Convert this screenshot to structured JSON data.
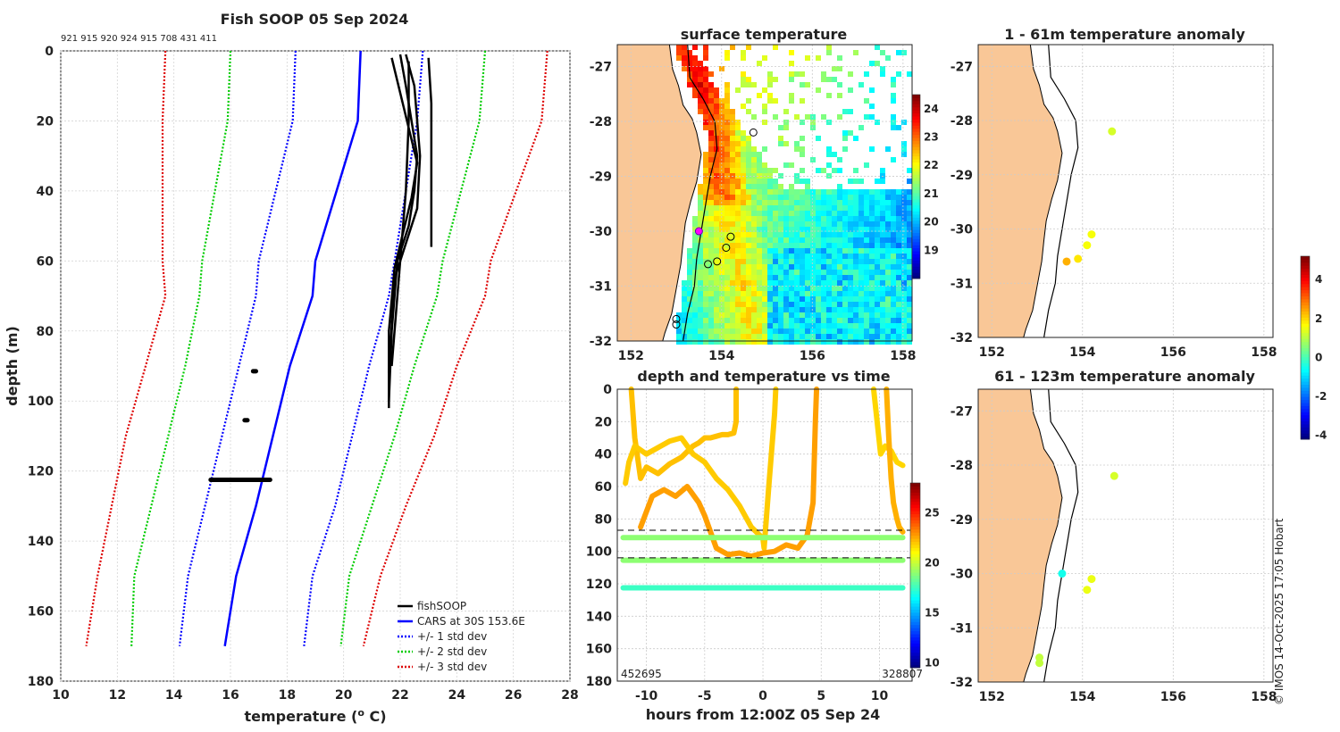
{
  "figure": {
    "copyright": "© IMOS 14-Oct-2025 17:05 Hobart"
  },
  "profile": {
    "title": "Fish SOOP 05 Sep 2024",
    "ids_line": "921 915 920 924 915 708 431 411",
    "xlabel": "temperature (",
    "xlabel_sup": "o",
    "xlabel_end": " C)",
    "ylabel": "depth (m)",
    "xticks": [
      "10",
      "12",
      "14",
      "16",
      "18",
      "20",
      "22",
      "24",
      "26",
      "28"
    ],
    "yticks": [
      "0",
      "20",
      "40",
      "60",
      "80",
      "100",
      "120",
      "140",
      "160",
      "180"
    ],
    "legend": [
      "fishSOOP",
      "CARS at 30S 153.6E",
      "+/- 1 std dev",
      "+/- 2 std dev",
      "+/- 3 std dev"
    ]
  },
  "chart_data": [
    {
      "type": "line",
      "name": "temperature profiles",
      "title": "Fish SOOP 05 Sep 2024",
      "xlabel": "temperature (o C)",
      "ylabel": "depth (m)",
      "xlim": [
        10,
        28
      ],
      "ylim": [
        180,
        0
      ],
      "depth": [
        0,
        20,
        60,
        70,
        90,
        110,
        130,
        150,
        170
      ],
      "series": [
        {
          "name": "CARS at 30S 153.6E",
          "color": "#0000ff",
          "style": "solid",
          "values": [
            20.6,
            20.5,
            19.0,
            18.9,
            18.1,
            17.5,
            16.9,
            16.2,
            15.8
          ]
        },
        {
          "name": "+1 std dev",
          "color": "#0000ff",
          "style": "dotted",
          "values": [
            22.8,
            22.6,
            21.8,
            21.6,
            20.9,
            20.3,
            19.7,
            18.9,
            18.6
          ]
        },
        {
          "name": "-1 std dev",
          "color": "#0000ff",
          "style": "dotted",
          "values": [
            18.3,
            18.2,
            17.0,
            16.9,
            16.3,
            15.7,
            15.1,
            14.5,
            14.2
          ]
        },
        {
          "name": "+2 std dev",
          "color": "#00cc00",
          "style": "dotted",
          "values": [
            25.0,
            24.8,
            23.5,
            23.3,
            22.5,
            21.8,
            21.0,
            20.2,
            19.9
          ]
        },
        {
          "name": "-2 std dev",
          "color": "#00cc00",
          "style": "dotted",
          "values": [
            16.0,
            15.9,
            15.0,
            14.9,
            14.4,
            13.8,
            13.2,
            12.6,
            12.5
          ]
        },
        {
          "name": "+3 std dev",
          "color": "#dd0000",
          "style": "dotted",
          "values": [
            27.2,
            27.0,
            25.2,
            25.0,
            24.0,
            23.2,
            22.2,
            21.3,
            20.7
          ]
        },
        {
          "name": "-3 std dev",
          "color": "#dd0000",
          "style": "dotted",
          "values": [
            13.7,
            13.6,
            13.6,
            13.7,
            13.0,
            12.3,
            11.8,
            11.3,
            10.9
          ]
        }
      ],
      "fishSOOP": [
        {
          "temp": [
            22.0,
            22.2,
            22.4,
            22.6,
            22.5,
            22.3,
            21.9,
            21.7,
            21.6
          ],
          "depth": [
            1,
            10,
            20,
            30,
            40,
            50,
            60,
            80,
            100
          ]
        },
        {
          "temp": [
            21.7,
            22.0,
            22.3,
            22.6,
            22.4,
            22.1,
            21.8,
            21.6,
            21.6
          ],
          "depth": [
            2,
            12,
            22,
            32,
            42,
            52,
            62,
            80,
            102
          ]
        },
        {
          "temp": [
            22.2,
            22.5,
            22.6,
            22.7,
            22.6,
            22.2,
            21.8,
            21.6
          ],
          "depth": [
            1,
            10,
            20,
            30,
            45,
            55,
            65,
            92
          ]
        },
        {
          "temp": [
            23.0,
            23.1,
            23.1,
            23.1,
            23.1
          ],
          "depth": [
            2,
            15,
            30,
            45,
            56
          ]
        },
        {
          "temp": [
            22.3,
            22.3,
            22.2,
            22.0,
            21.7
          ],
          "depth": [
            3,
            20,
            40,
            60,
            90
          ]
        }
      ],
      "fishSOOP_clusters": [
        {
          "temp_min": 15.3,
          "temp_max": 17.4,
          "depth": 122.5
        },
        {
          "temp_min": 16.8,
          "temp_max": 16.9,
          "depth": 91.5
        },
        {
          "temp_min": 16.5,
          "temp_max": 16.6,
          "depth": 105.5
        }
      ]
    },
    {
      "type": "heatmap",
      "name": "surface temperature map",
      "title": "surface temperature",
      "xticks": [
        "152",
        "154",
        "156",
        "158"
      ],
      "yticks": [
        "-27",
        "-28",
        "-29",
        "-30",
        "-31",
        "-32"
      ],
      "xlim": [
        151.7,
        158.2
      ],
      "ylim": [
        -32,
        -26.6
      ],
      "colorbar": {
        "ticks": [
          "24",
          "23",
          "22",
          "21",
          "20",
          "19"
        ],
        "range": [
          18,
          24.5
        ]
      },
      "stations": [
        {
          "lon": 154.7,
          "lat": -28.2
        },
        {
          "lon": 154.2,
          "lat": -30.1
        },
        {
          "lon": 154.1,
          "lat": -30.3
        },
        {
          "lon": 153.9,
          "lat": -30.55
        },
        {
          "lon": 153.7,
          "lat": -30.6
        },
        {
          "lon": 153.5,
          "lat": -30.0,
          "highlight": true
        },
        {
          "lon": 153.0,
          "lat": -31.6
        },
        {
          "lon": 153.0,
          "lat": -31.7
        }
      ]
    },
    {
      "type": "line",
      "name": "depth and temperature vs time",
      "title": "depth and temperature vs time",
      "xlabel": "hours from 12:00Z 05 Sep 24",
      "xticks": [
        "-10",
        "-5",
        "0",
        "5",
        "10"
      ],
      "yticks": [
        "0",
        "20",
        "40",
        "60",
        "80",
        "100",
        "120",
        "140",
        "160",
        "180"
      ],
      "xlim": [
        -12.5,
        12.8
      ],
      "ylim": [
        180,
        0
      ],
      "colorbar": {
        "ticks": [
          "25",
          "20",
          "15",
          "10"
        ],
        "range": [
          9.5,
          28
        ]
      },
      "corner_left": "452695",
      "corner_right": "328807",
      "dashed_depths": [
        87,
        104
      ],
      "tracks": [
        {
          "temp": 22.2,
          "hours": [
            -11.3,
            -11.0,
            -10.5,
            -10.0,
            -9.0,
            -8.0,
            -7.0,
            -6.0,
            -5.5,
            -5.0,
            -4.5,
            -4.0,
            -3.5,
            -3.0,
            -2.5,
            -2.3,
            -2.3
          ],
          "depth": [
            0,
            30,
            55,
            48,
            52,
            46,
            42,
            35,
            33,
            30,
            30,
            29,
            28,
            28,
            27,
            20,
            0
          ]
        },
        {
          "temp": 22.0,
          "hours": [
            -11.8,
            -11.5,
            -11.0,
            -10.0,
            -9.0,
            -8.0,
            -7.0,
            -6.0,
            -5.0,
            -4.0,
            -3.0,
            -2.0,
            -1.0,
            0.0,
            0.1,
            0.5,
            1.0,
            1.1
          ],
          "depth": [
            58,
            45,
            35,
            40,
            36,
            32,
            30,
            40,
            45,
            55,
            62,
            72,
            85,
            92,
            98,
            60,
            15,
            0
          ]
        },
        {
          "temp": 22.8,
          "hours": [
            -10.5,
            -9.5,
            -8.5,
            -7.5,
            -6.5,
            -5.5,
            -5.0,
            -4.0,
            -3.0,
            -2.0,
            -1.0,
            0.0,
            1.0,
            2.0,
            3.0,
            3.8,
            4.3,
            4.5,
            4.6
          ],
          "depth": [
            85,
            66,
            62,
            66,
            60,
            70,
            78,
            98,
            102,
            101,
            103,
            101,
            100,
            96,
            98,
            90,
            70,
            20,
            0
          ]
        },
        {
          "temp": 21.8,
          "hours": [
            9.5,
            9.8,
            10.1,
            10.5,
            11.0,
            11.5,
            12.0
          ],
          "depth": [
            0,
            20,
            40,
            35,
            38,
            45,
            47
          ]
        },
        {
          "temp": 22.5,
          "hours": [
            10.6,
            10.8,
            11.0,
            11.2,
            11.5,
            11.7,
            12.0
          ],
          "depth": [
            0,
            30,
            55,
            70,
            80,
            85,
            88
          ]
        },
        {
          "temp": 19.0,
          "hours": [
            -12.0,
            12.0
          ],
          "depth": [
            91.5,
            91.5
          ]
        },
        {
          "temp": 19.0,
          "hours": [
            -12.0,
            12.0
          ],
          "depth": [
            105.5,
            105.5
          ]
        },
        {
          "temp": 17.5,
          "hours": [
            -12.0,
            12.0
          ],
          "depth": [
            122.5,
            122.5
          ]
        }
      ]
    },
    {
      "type": "scatter",
      "name": "1-61m anomaly",
      "title": "1 - 61m temperature anomaly",
      "xticks": [
        "152",
        "154",
        "156",
        "158"
      ],
      "yticks": [
        "-27",
        "-28",
        "-29",
        "-30",
        "-31",
        "-32"
      ],
      "xlim": [
        151.7,
        158.2
      ],
      "ylim": [
        -32,
        -26.6
      ],
      "points": [
        {
          "lon": 154.65,
          "lat": -28.2,
          "anom": 1.3
        },
        {
          "lon": 154.2,
          "lat": -30.1,
          "anom": 1.6
        },
        {
          "lon": 154.1,
          "lat": -30.3,
          "anom": 1.6
        },
        {
          "lon": 153.9,
          "lat": -30.55,
          "anom": 1.9
        },
        {
          "lon": 153.65,
          "lat": -30.6,
          "anom": 2.4
        }
      ]
    },
    {
      "type": "scatter",
      "name": "61-123m anomaly",
      "title": "61 - 123m temperature anomaly",
      "xticks": [
        "152",
        "154",
        "156",
        "158"
      ],
      "yticks": [
        "-27",
        "-28",
        "-29",
        "-30",
        "-31",
        "-32"
      ],
      "xlim": [
        151.7,
        158.2
      ],
      "ylim": [
        -32,
        -26.6
      ],
      "colorbar": {
        "ticks": [
          "4",
          "2",
          "0",
          "-2",
          "-4"
        ],
        "range": [
          -4.2,
          5.2
        ]
      },
      "points": [
        {
          "lon": 154.7,
          "lat": -28.2,
          "anom": 1.3
        },
        {
          "lon": 154.2,
          "lat": -30.1,
          "anom": 1.5
        },
        {
          "lon": 154.1,
          "lat": -30.3,
          "anom": 1.5
        },
        {
          "lon": 153.55,
          "lat": -30.0,
          "anom": -0.5
        },
        {
          "lon": 153.05,
          "lat": -31.55,
          "anom": 1.1
        },
        {
          "lon": 153.05,
          "lat": -31.65,
          "anom": 1.1
        }
      ]
    }
  ]
}
